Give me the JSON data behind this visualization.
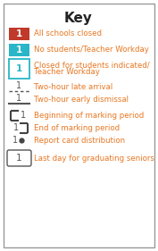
{
  "title": "Key",
  "title_fontsize": 11,
  "title_fontweight": "bold",
  "text_color_orange": "#E87722",
  "text_color_black": "#222222",
  "background": "#ffffff",
  "border_color": "#999999",
  "items": [
    {
      "type": "filled_box",
      "box_color": "#C0392B",
      "box_border": "#C0392B",
      "label_color": "#E87722",
      "label": "All schools closed",
      "number": "1",
      "number_color": "#ffffff"
    },
    {
      "type": "filled_box",
      "box_color": "#29B6C8",
      "box_border": "#29B6C8",
      "label_color": "#E87722",
      "label": "No students/Teacher Workday",
      "number": "1",
      "number_color": "#ffffff"
    },
    {
      "type": "outlined_box_cyan",
      "box_color": "#ffffff",
      "box_border": "#29B6C8",
      "label_color": "#E87722",
      "label_line1": "Closed for students indicated/",
      "label_line2": "Teacher Workday",
      "number": "1",
      "number_color": "#29B6C8"
    },
    {
      "type": "dashed_line",
      "label_color": "#E87722",
      "label": "Two-hour late arrival",
      "number": "1",
      "number_color": "#555555"
    },
    {
      "type": "solid_line",
      "label_color": "#E87722",
      "label": "Two-hour early dismissal",
      "number": "1",
      "number_color": "#555555"
    },
    {
      "type": "bracket_left",
      "label_color": "#E87722",
      "label": "Beginning of marking period",
      "number": "1",
      "number_color": "#555555"
    },
    {
      "type": "bracket_right",
      "label_color": "#E87722",
      "label": "End of marking period",
      "number": "1",
      "number_color": "#555555"
    },
    {
      "type": "dot",
      "label_color": "#E87722",
      "label": "Report card distribution",
      "number": "1",
      "number_color": "#555555"
    },
    {
      "type": "rounded_box",
      "box_color": "#ffffff",
      "box_border": "#555555",
      "label_color": "#E87722",
      "label": "Last day for graduating seniors",
      "number": "1",
      "number_color": "#555555"
    }
  ]
}
